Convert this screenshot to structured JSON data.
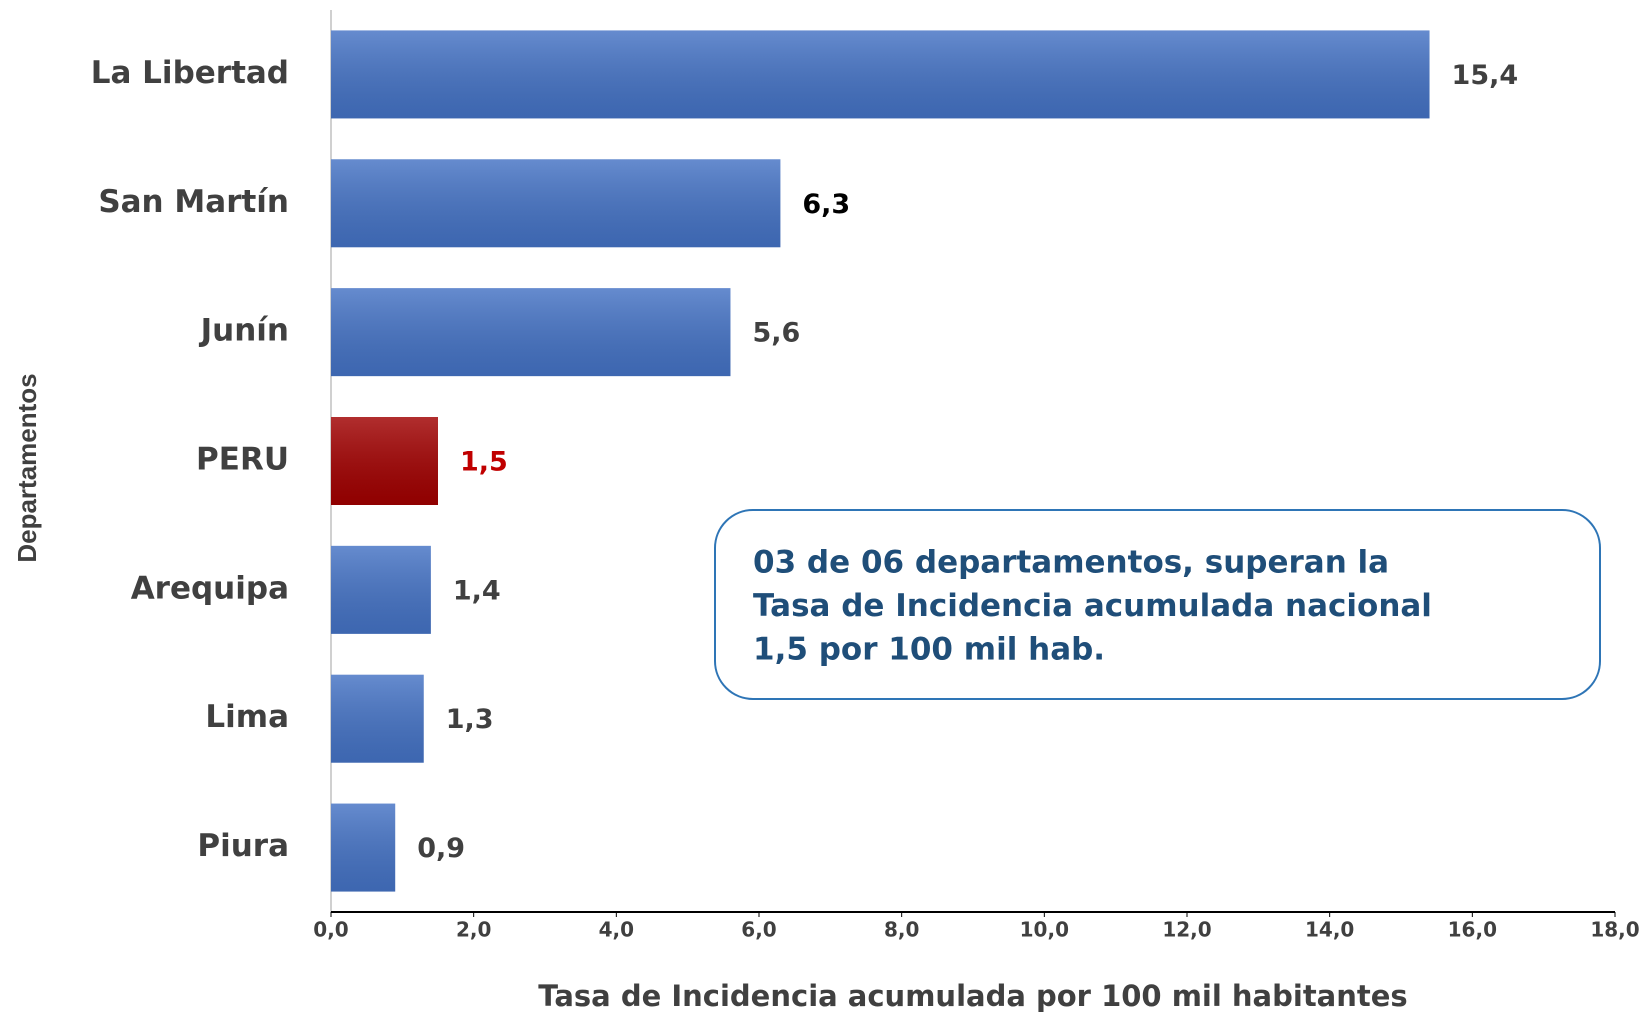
{
  "chart_data": {
    "type": "barh",
    "categories": [
      "La Libertad",
      "San Martín",
      "Junín",
      "PERU",
      "Arequipa",
      "Lima",
      "Piura"
    ],
    "values": [
      15.4,
      6.3,
      5.6,
      1.5,
      1.4,
      1.3,
      0.9
    ],
    "value_labels": [
      "15,4",
      "6,3",
      "5,6",
      "1,5",
      "1,4",
      "1,3",
      "0,9"
    ],
    "colors": [
      "#4472c4",
      "#4472c4",
      "#4472c4",
      "#a00000",
      "#4472c4",
      "#4472c4",
      "#4472c4"
    ],
    "label_colors": [
      "#404040",
      "#000000",
      "#404040",
      "#c00000",
      "#404040",
      "#404040",
      "#404040"
    ],
    "xlim": [
      0,
      18
    ],
    "xticks": [
      {
        "value": 0,
        "label": "0,0"
      },
      {
        "value": 2,
        "label": "2,0"
      },
      {
        "value": 4,
        "label": "4,0"
      },
      {
        "value": 6,
        "label": "6,0"
      },
      {
        "value": 8,
        "label": "8,0"
      },
      {
        "value": 10,
        "label": "10,0"
      },
      {
        "value": 12,
        "label": "12,0"
      },
      {
        "value": 14,
        "label": "14,0"
      },
      {
        "value": 16,
        "label": "16,0"
      },
      {
        "value": 18,
        "label": "18,0"
      }
    ],
    "xlabel": "Tasa de Incidencia acumulada por 100 mil habitantes",
    "ylabel": "Departamentos",
    "annotation": [
      "03 de 06 departamentos, superan la",
      "Tasa de Incidencia acumulada nacional",
      "1,5 por 100 mil hab."
    ]
  }
}
